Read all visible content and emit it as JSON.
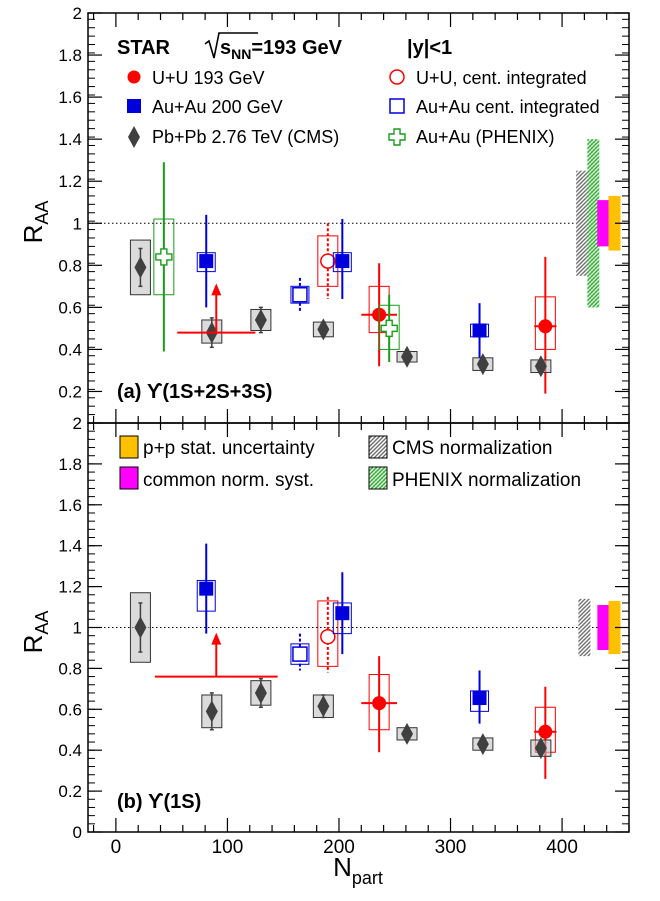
{
  "figure": {
    "ylabel_main": "R",
    "ylabel_sub": "AA",
    "xlabel_main": "N",
    "xlabel_sub": "part",
    "x_ticks": [
      "0",
      "100",
      "200",
      "300",
      "400"
    ],
    "y_ticks_top": [
      "0.2",
      "0.4",
      "0.6",
      "0.8",
      "1",
      "1.2",
      "1.4",
      "1.6",
      "1.8",
      "2"
    ],
    "y_ticks_bottom": [
      "0",
      "0.2",
      "0.4",
      "0.6",
      "0.8",
      "1",
      "1.2",
      "1.4",
      "1.6",
      "1.8",
      "2"
    ]
  },
  "colors": {
    "uu": "#ff0000",
    "auau": "#0000dd",
    "pbpb": "#404040",
    "phenix": "#1a9c1a",
    "pp_stat": "#ffc000",
    "common_norm": "#ff00ff",
    "cms_norm": "#808080",
    "phenix_norm": "#66cc66"
  },
  "legend_top": {
    "header_star": "STAR",
    "header_energy": "=193 GeV",
    "header_sqrt": "s",
    "header_sqrt_sub": "NN",
    "header_rapidity": "|y|<1",
    "entries": [
      {
        "key": "uu",
        "label": "U+U 193 GeV"
      },
      {
        "key": "auau",
        "label": "Au+Au 200 GeV"
      },
      {
        "key": "pbpb",
        "label": "Pb+Pb 2.76 TeV (CMS)"
      },
      {
        "key": "uu_int",
        "label": "U+U, cent. integrated"
      },
      {
        "key": "auau_int",
        "label": "Au+Au cent. integrated"
      },
      {
        "key": "phenix",
        "label": "Au+Au (PHENIX)"
      }
    ]
  },
  "legend_bottom": {
    "entries": [
      {
        "key": "pp_stat",
        "label": "p+p stat. uncertainty"
      },
      {
        "key": "common_norm",
        "label": "common norm. syst."
      },
      {
        "key": "cms_norm",
        "label": "CMS normalization"
      },
      {
        "key": "phenix_norm",
        "label": "PHENIX normalization"
      }
    ]
  },
  "chart_data": [
    {
      "type": "scatter",
      "panel_label": "(a) ϒ(1S+2S+3S)",
      "xlim": [
        -25,
        460
      ],
      "ylim": [
        0.05,
        2
      ],
      "reference_line": 1,
      "series": [
        {
          "name": "U+U 193 GeV",
          "marker": "circle-filled",
          "color": "#ff0000",
          "points": [
            {
              "x": 236,
              "y": 0.565,
              "ylo": 0.32,
              "yhi": 0.81,
              "xerr": 16,
              "sys_lo": 0.48,
              "sys_hi": 0.7
            },
            {
              "x": 385,
              "y": 0.51,
              "ylo": 0.19,
              "yhi": 0.84,
              "xerr": 10,
              "sys_lo": 0.4,
              "sys_hi": 0.65
            }
          ]
        },
        {
          "name": "U+U, cent. integrated",
          "marker": "circle-open",
          "color": "#ff0000",
          "points": [
            {
              "x": 190,
              "y": 0.82,
              "ylo": 0.64,
              "yhi": 1.0,
              "sys_lo": 0.7,
              "sys_hi": 0.94
            }
          ]
        },
        {
          "name": "Au+Au 200 GeV",
          "marker": "square-filled",
          "color": "#0000dd",
          "points": [
            {
              "x": 81,
              "y": 0.82,
              "ylo": 0.6,
              "yhi": 1.04,
              "sys_lo": 0.77,
              "sys_hi": 0.86
            },
            {
              "x": 203,
              "y": 0.82,
              "ylo": 0.64,
              "yhi": 1.02,
              "sys_lo": 0.77,
              "sys_hi": 0.86
            },
            {
              "x": 326,
              "y": 0.49,
              "ylo": 0.36,
              "yhi": 0.62,
              "sys_lo": 0.46,
              "sys_hi": 0.52
            }
          ]
        },
        {
          "name": "Au+Au cent. integrated",
          "marker": "square-open",
          "color": "#0000dd",
          "points": [
            {
              "x": 165,
              "y": 0.66,
              "ylo": 0.58,
              "yhi": 0.74,
              "sys_lo": 0.62,
              "sys_hi": 0.7
            }
          ]
        },
        {
          "name": "Pb+Pb 2.76 TeV (CMS)",
          "marker": "diamond",
          "color": "#404040",
          "points": [
            {
              "x": 22,
              "y": 0.79,
              "ylo": 0.7,
              "yhi": 0.88,
              "sys_lo": 0.66,
              "sys_hi": 0.92
            },
            {
              "x": 86,
              "y": 0.48,
              "ylo": 0.41,
              "yhi": 0.55,
              "sys_lo": 0.43,
              "sys_hi": 0.54
            },
            {
              "x": 130,
              "y": 0.54,
              "ylo": 0.48,
              "yhi": 0.6,
              "sys_lo": 0.49,
              "sys_hi": 0.59
            },
            {
              "x": 186,
              "y": 0.495,
              "ylo": 0.46,
              "yhi": 0.53,
              "sys_lo": 0.46,
              "sys_hi": 0.53
            },
            {
              "x": 261,
              "y": 0.365,
              "ylo": 0.34,
              "yhi": 0.39,
              "sys_lo": 0.34,
              "sys_hi": 0.39
            },
            {
              "x": 329,
              "y": 0.33,
              "ylo": 0.3,
              "yhi": 0.36,
              "sys_lo": 0.3,
              "sys_hi": 0.36
            },
            {
              "x": 381,
              "y": 0.32,
              "ylo": 0.29,
              "yhi": 0.35,
              "sys_lo": 0.29,
              "sys_hi": 0.35
            }
          ]
        },
        {
          "name": "Au+Au (PHENIX)",
          "marker": "cross-open",
          "color": "#1a9c1a",
          "points": [
            {
              "x": 43,
              "y": 0.84,
              "ylo": 0.39,
              "yhi": 1.29,
              "sys_lo": 0.66,
              "sys_hi": 1.02
            },
            {
              "x": 245,
              "y": 0.5,
              "ylo": 0.34,
              "yhi": 0.66,
              "sys_lo": 0.4,
              "sys_hi": 0.61
            }
          ]
        }
      ],
      "upper_limits": [
        {
          "x": 90,
          "y": 0.48,
          "xlo": 55,
          "xhi": 125,
          "arrow_to": 0.7,
          "color": "#ff0000"
        }
      ],
      "norm_boxes": [
        {
          "key": "cms_norm",
          "center": 1.0,
          "lo": 0.75,
          "hi": 1.25
        },
        {
          "key": "phenix_norm",
          "center": 1.0,
          "lo": 0.6,
          "hi": 1.4
        },
        {
          "key": "common_norm",
          "center": 1.0,
          "lo": 0.89,
          "hi": 1.11
        },
        {
          "key": "pp_stat",
          "center": 1.0,
          "lo": 0.87,
          "hi": 1.13
        }
      ]
    },
    {
      "type": "scatter",
      "panel_label": "(b) ϒ(1S)",
      "xlim": [
        -25,
        460
      ],
      "ylim": [
        0,
        2
      ],
      "reference_line": 1,
      "series": [
        {
          "name": "U+U 193 GeV",
          "marker": "circle-filled",
          "color": "#ff0000",
          "points": [
            {
              "x": 236,
              "y": 0.63,
              "ylo": 0.39,
              "yhi": 0.86,
              "xerr": 16,
              "sys_lo": 0.5,
              "sys_hi": 0.77
            },
            {
              "x": 385,
              "y": 0.49,
              "ylo": 0.26,
              "yhi": 0.71,
              "xerr": 10,
              "sys_lo": 0.39,
              "sys_hi": 0.61
            }
          ]
        },
        {
          "name": "U+U, cent. integrated",
          "marker": "circle-open",
          "color": "#ff0000",
          "points": [
            {
              "x": 190,
              "y": 0.955,
              "ylo": 0.78,
              "yhi": 1.15,
              "sys_lo": 0.81,
              "sys_hi": 1.13
            }
          ]
        },
        {
          "name": "Au+Au 200 GeV",
          "marker": "square-filled",
          "color": "#0000dd",
          "points": [
            {
              "x": 81,
              "y": 1.19,
              "ylo": 0.97,
              "yhi": 1.41,
              "sys_lo": 1.08,
              "sys_hi": 1.23
            },
            {
              "x": 203,
              "y": 1.07,
              "ylo": 0.87,
              "yhi": 1.27,
              "sys_lo": 0.97,
              "sys_hi": 1.12
            },
            {
              "x": 326,
              "y": 0.655,
              "ylo": 0.53,
              "yhi": 0.79,
              "sys_lo": 0.59,
              "sys_hi": 0.69
            }
          ]
        },
        {
          "name": "Au+Au cent. integrated",
          "marker": "square-open",
          "color": "#0000dd",
          "points": [
            {
              "x": 165,
              "y": 0.87,
              "ylo": 0.79,
              "yhi": 0.97,
              "sys_lo": 0.82,
              "sys_hi": 0.92
            }
          ]
        },
        {
          "name": "Pb+Pb 2.76 TeV (CMS)",
          "marker": "diamond",
          "color": "#404040",
          "points": [
            {
              "x": 22,
              "y": 1.0,
              "ylo": 0.88,
              "yhi": 1.12,
              "sys_lo": 0.83,
              "sys_hi": 1.17
            },
            {
              "x": 86,
              "y": 0.59,
              "ylo": 0.5,
              "yhi": 0.68,
              "sys_lo": 0.51,
              "sys_hi": 0.67
            },
            {
              "x": 130,
              "y": 0.68,
              "ylo": 0.61,
              "yhi": 0.75,
              "sys_lo": 0.62,
              "sys_hi": 0.74
            },
            {
              "x": 186,
              "y": 0.615,
              "ylo": 0.56,
              "yhi": 0.67,
              "sys_lo": 0.56,
              "sys_hi": 0.67
            },
            {
              "x": 261,
              "y": 0.48,
              "ylo": 0.45,
              "yhi": 0.51,
              "sys_lo": 0.45,
              "sys_hi": 0.51
            },
            {
              "x": 329,
              "y": 0.43,
              "ylo": 0.4,
              "yhi": 0.46,
              "sys_lo": 0.4,
              "sys_hi": 0.46
            },
            {
              "x": 381,
              "y": 0.41,
              "ylo": 0.38,
              "yhi": 0.44,
              "sys_lo": 0.37,
              "sys_hi": 0.45
            }
          ]
        }
      ],
      "upper_limits": [
        {
          "x": 90,
          "y": 0.76,
          "xlo": 35,
          "xhi": 145,
          "arrow_to": 0.96,
          "color": "#ff0000"
        }
      ],
      "norm_boxes": [
        {
          "key": "cms_norm",
          "center": 1.0,
          "lo": 0.86,
          "hi": 1.14
        },
        {
          "key": "common_norm",
          "center": 1.0,
          "lo": 0.89,
          "hi": 1.11
        },
        {
          "key": "pp_stat",
          "center": 1.0,
          "lo": 0.87,
          "hi": 1.13
        }
      ]
    }
  ]
}
